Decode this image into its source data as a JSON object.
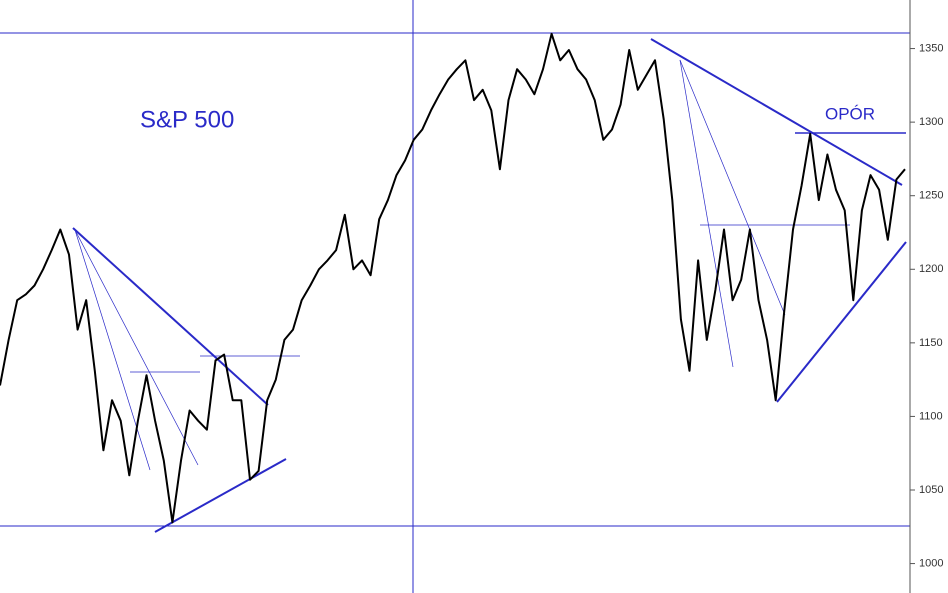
{
  "chart_data": {
    "type": "line",
    "title": "S&P 500",
    "annotations": [
      "OPÓR"
    ],
    "series": [
      {
        "name": "S&P 500",
        "color": "#000000",
        "values": [
          1121,
          1152,
          1179,
          1183,
          1189,
          1200,
          1213,
          1227,
          1210,
          1159,
          1179,
          1131,
          1077,
          1111,
          1097,
          1060,
          1097,
          1128,
          1097,
          1070,
          1028,
          1070,
          1104,
          1097,
          1091,
          1138,
          1142,
          1111,
          1111,
          1057,
          1063,
          1111,
          1125,
          1152,
          1159,
          1179,
          1189,
          1200,
          1206,
          1213,
          1237,
          1200,
          1206,
          1196,
          1234,
          1247,
          1264,
          1274,
          1288,
          1295,
          1308,
          1319,
          1329,
          1336,
          1342,
          1315,
          1322,
          1308,
          1268,
          1315,
          1336,
          1329,
          1319,
          1336,
          1360,
          1342,
          1349,
          1336,
          1329,
          1315,
          1288,
          1295,
          1312,
          1349,
          1322,
          1332,
          1342,
          1302,
          1247,
          1166,
          1131,
          1206,
          1152,
          1186,
          1227,
          1179,
          1193,
          1227,
          1179,
          1152,
          1111,
          1172,
          1227,
          1257,
          1292,
          1247,
          1278,
          1254,
          1240,
          1179,
          1240,
          1264,
          1254,
          1220,
          1261,
          1268
        ]
      }
    ],
    "ylim": [
      980,
      1383
    ],
    "yticks": [
      1000,
      1050,
      1100,
      1150,
      1200,
      1250,
      1300,
      1350
    ]
  }
}
